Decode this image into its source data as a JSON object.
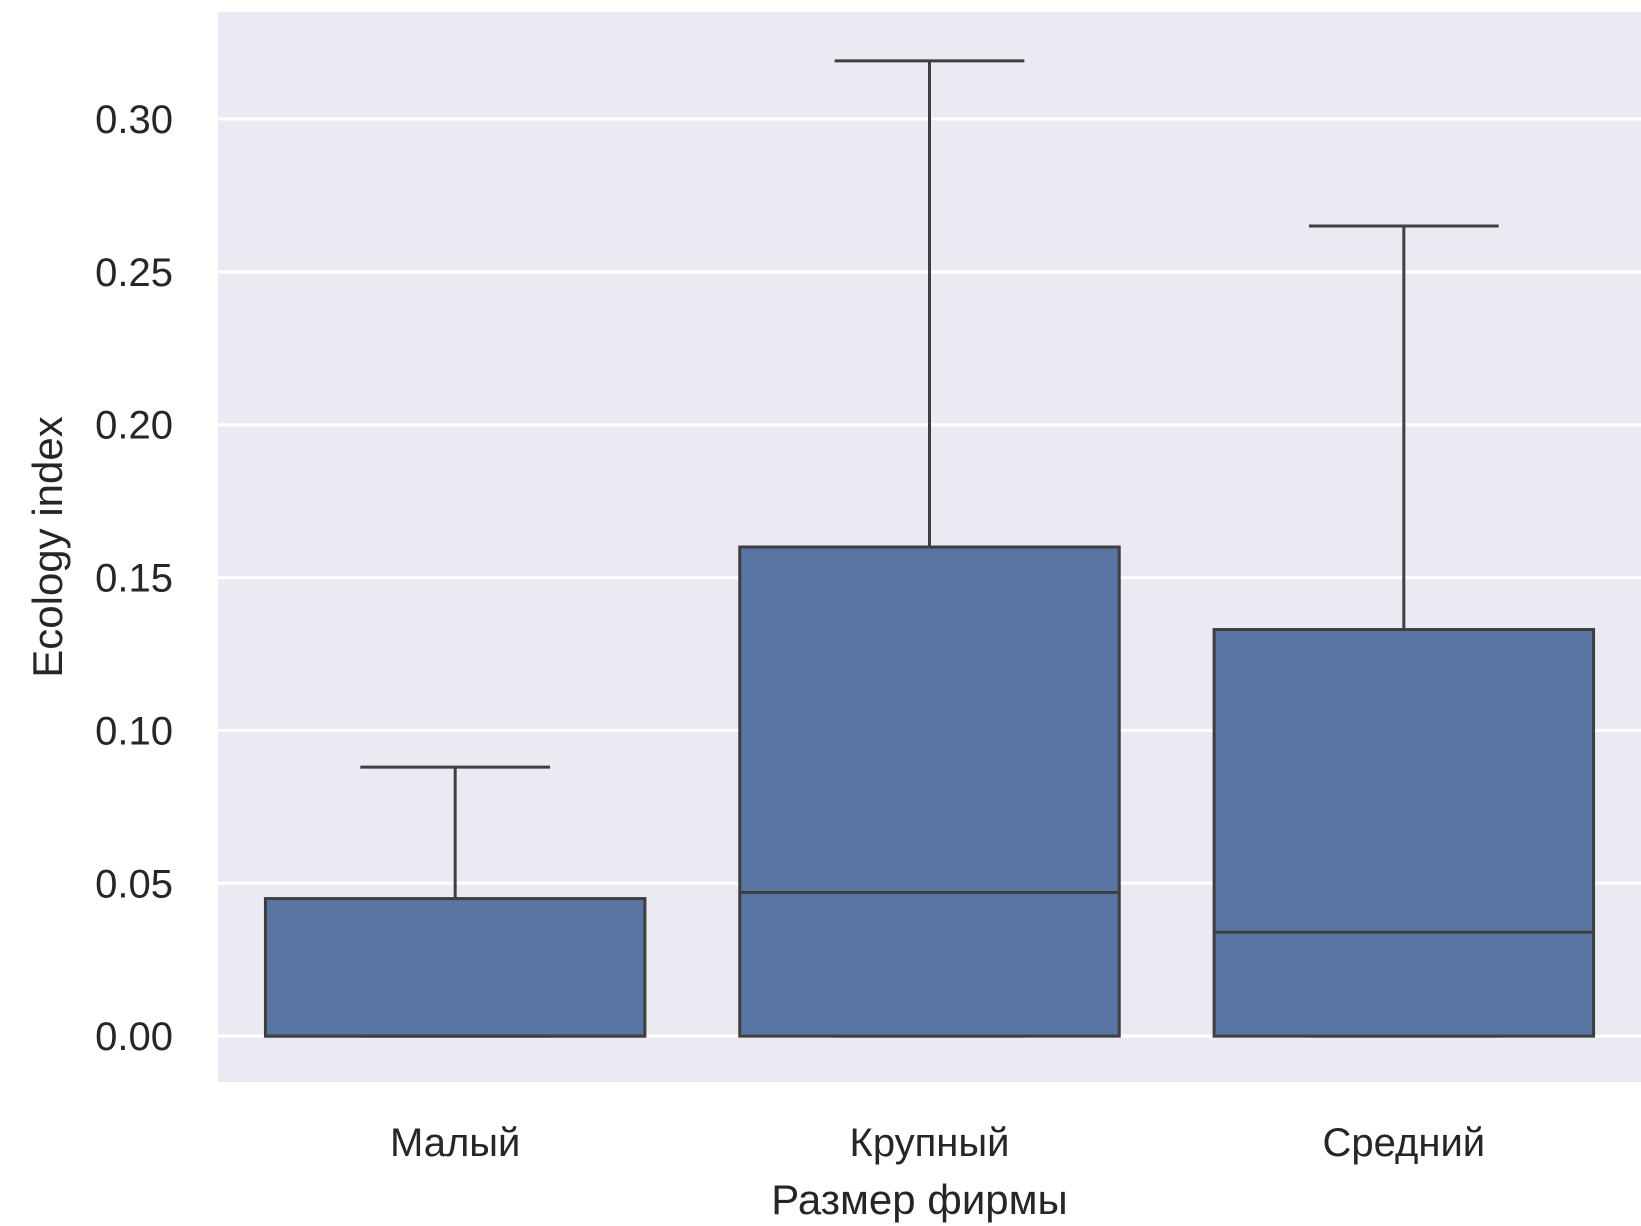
{
  "chart_data": {
    "type": "box",
    "xlabel": "Размер фирмы",
    "ylabel": "Ecology index",
    "ylim": [
      -0.015,
      0.335
    ],
    "yticks": [
      "0.00",
      "0.05",
      "0.10",
      "0.15",
      "0.20",
      "0.25",
      "0.30"
    ],
    "grid": true,
    "categories": [
      "Малый",
      "Крупный",
      "Средний"
    ],
    "boxes": [
      {
        "category": "Малый",
        "whisker_low": 0.0,
        "q1": 0.0,
        "median": 0.0,
        "q3": 0.045,
        "whisker_high": 0.088
      },
      {
        "category": "Крупный",
        "whisker_low": 0.0,
        "q1": 0.0,
        "median": 0.047,
        "q3": 0.16,
        "whisker_high": 0.319
      },
      {
        "category": "Средний",
        "whisker_low": 0.0,
        "q1": 0.0,
        "median": 0.034,
        "q3": 0.133,
        "whisker_high": 0.265
      }
    ],
    "colors": {
      "box": "#5975a4",
      "line": "#3f3f3f",
      "background": "#eaeaf2",
      "grid": "#ffffff"
    }
  }
}
